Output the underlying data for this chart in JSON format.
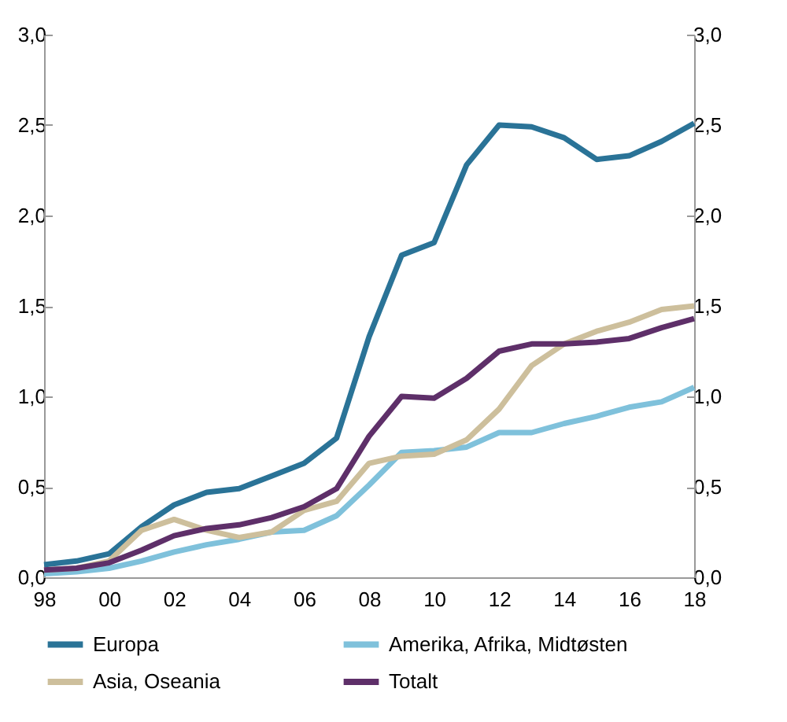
{
  "chart_data": {
    "type": "line",
    "x": [
      1998,
      1999,
      2000,
      2001,
      2002,
      2003,
      2004,
      2005,
      2006,
      2007,
      2008,
      2009,
      2010,
      2011,
      2012,
      2013,
      2014,
      2015,
      2016,
      2017,
      2018
    ],
    "xlim": [
      1998,
      2018
    ],
    "xticks": [
      {
        "value": 1998,
        "label": "98"
      },
      {
        "value": 2000,
        "label": "00"
      },
      {
        "value": 2002,
        "label": "02"
      },
      {
        "value": 2004,
        "label": "04"
      },
      {
        "value": 2006,
        "label": "06"
      },
      {
        "value": 2008,
        "label": "08"
      },
      {
        "value": 2010,
        "label": "10"
      },
      {
        "value": 2012,
        "label": "12"
      },
      {
        "value": 2014,
        "label": "14"
      },
      {
        "value": 2016,
        "label": "16"
      },
      {
        "value": 2018,
        "label": "18"
      }
    ],
    "ylim": [
      0,
      3
    ],
    "yticks": [
      {
        "value": 0,
        "label": "0,0"
      },
      {
        "value": 0.5,
        "label": "0,5"
      },
      {
        "value": 1,
        "label": "1,0"
      },
      {
        "value": 1.5,
        "label": "1,5"
      },
      {
        "value": 2,
        "label": "2,0"
      },
      {
        "value": 2.5,
        "label": "2,5"
      },
      {
        "value": 3,
        "label": "3,0"
      }
    ],
    "y2lim": [
      0,
      3
    ],
    "y2ticks": [
      {
        "value": 0,
        "label": "0,0"
      },
      {
        "value": 0.5,
        "label": "0,5"
      },
      {
        "value": 1,
        "label": "1,0"
      },
      {
        "value": 1.5,
        "label": "1,5"
      },
      {
        "value": 2,
        "label": "2,0"
      },
      {
        "value": 2.5,
        "label": "2,5"
      },
      {
        "value": 3,
        "label": "3,0"
      }
    ],
    "legend": "bottom",
    "series": [
      {
        "name": "Europa",
        "color": "#2a7397",
        "values": [
          0.07,
          0.09,
          0.13,
          0.28,
          0.4,
          0.47,
          0.49,
          0.56,
          0.63,
          0.77,
          1.33,
          1.78,
          1.85,
          2.28,
          2.5,
          2.49,
          2.43,
          2.31,
          2.33,
          2.41,
          2.51
        ]
      },
      {
        "name": "Amerika, Afrika, Midtøsten",
        "color": "#7fc1db",
        "values": [
          0.02,
          0.03,
          0.05,
          0.09,
          0.14,
          0.18,
          0.21,
          0.25,
          0.26,
          0.34,
          0.51,
          0.69,
          0.7,
          0.72,
          0.8,
          0.8,
          0.85,
          0.89,
          0.94,
          0.97,
          1.05
        ]
      },
      {
        "name": "Asia, Oseania",
        "color": "#cdbf9c",
        "values": [
          0.04,
          0.05,
          0.09,
          0.26,
          0.32,
          0.26,
          0.22,
          0.25,
          0.37,
          0.42,
          0.63,
          0.67,
          0.68,
          0.76,
          0.93,
          1.17,
          1.29,
          1.36,
          1.41,
          1.48,
          1.5
        ]
      },
      {
        "name": "Totalt",
        "color": "#5e2f69",
        "values": [
          0.04,
          0.05,
          0.08,
          0.15,
          0.23,
          0.27,
          0.29,
          0.33,
          0.39,
          0.49,
          0.78,
          1.0,
          0.99,
          1.1,
          1.25,
          1.29,
          1.29,
          1.3,
          1.32,
          1.38,
          1.43
        ]
      }
    ]
  }
}
